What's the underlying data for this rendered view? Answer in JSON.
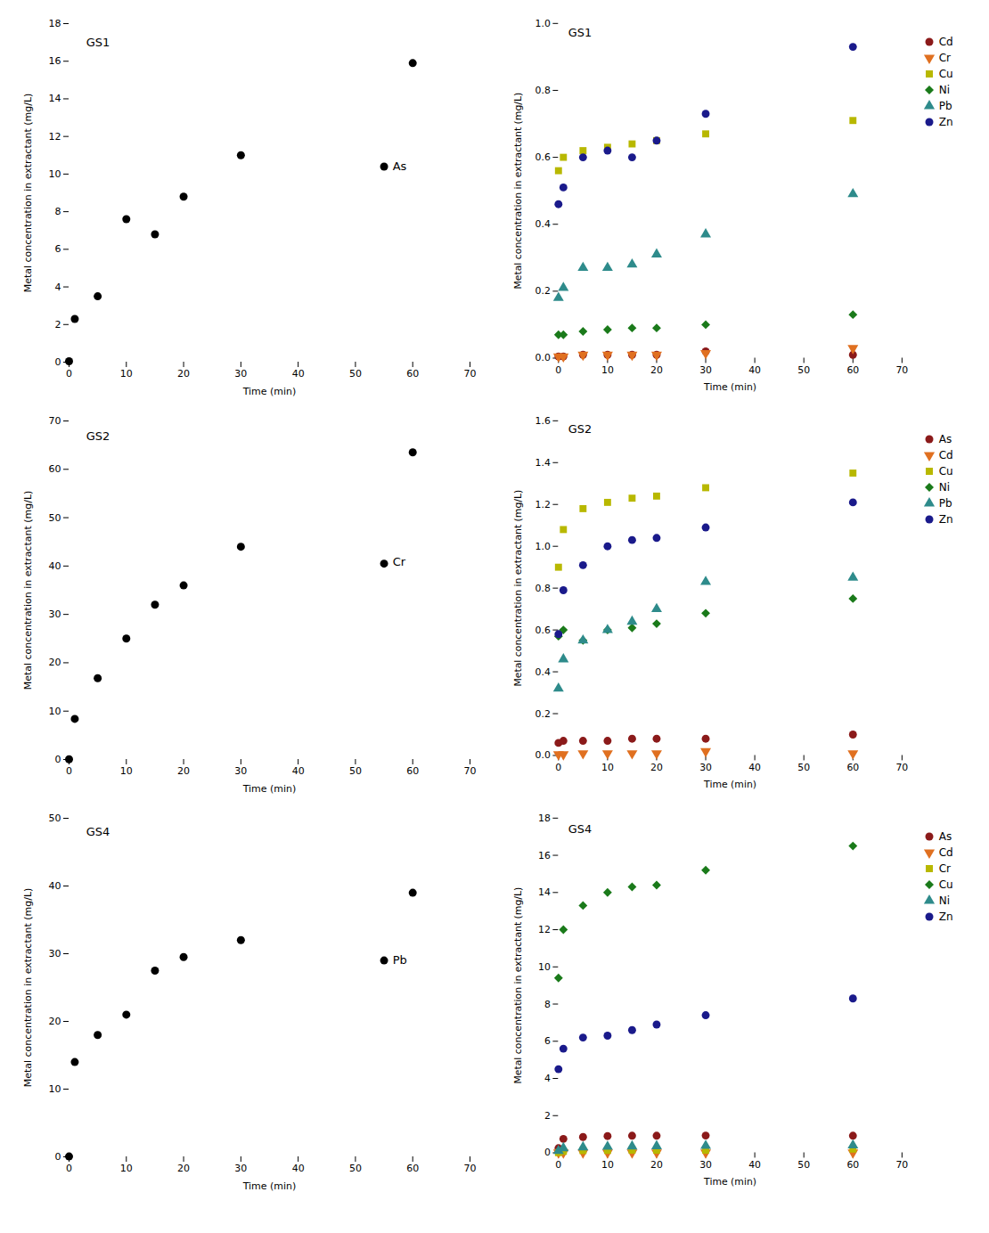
{
  "chart_data": [
    {
      "type": "scatter",
      "xlabel": "Time (min)",
      "ylabel": "Metal concentration in extractant (mg/L)",
      "xlim": [
        0,
        70
      ],
      "xticks": [
        0,
        10,
        20,
        30,
        40,
        50,
        60,
        70
      ],
      "ylim": [
        0,
        18
      ],
      "yticks": [
        0,
        2,
        4,
        6,
        8,
        10,
        12,
        14,
        16,
        18
      ],
      "annotations": [
        {
          "text": "As",
          "x": 56.5,
          "y": 10.2
        },
        {
          "text": "GS1",
          "x": 3,
          "y": 16.8
        }
      ],
      "x": [
        0,
        1,
        5,
        10,
        15,
        20,
        30,
        55,
        60
      ],
      "values": [
        0.05,
        2.3,
        3.5,
        7.6,
        6.8,
        8.8,
        11.0,
        10.4,
        15.9
      ],
      "color": "black",
      "marker": "circle"
    },
    {
      "type": "scatter",
      "xlabel": "Time (min)",
      "ylabel": "Metal concentration in extractant (mg/L)",
      "xlim": [
        0,
        70
      ],
      "xticks": [
        0,
        10,
        20,
        30,
        40,
        50,
        60,
        70
      ],
      "ylim": [
        0,
        1.0
      ],
      "yticks": [
        {
          "value": 0,
          "label": "0.0"
        },
        0.2,
        0.4,
        0.6,
        0.8,
        {
          "value": 1.0,
          "label": "1.0"
        }
      ],
      "annotations": [
        {
          "text": "GS1",
          "x": 2,
          "y": 0.96
        }
      ],
      "legend": "right",
      "x": [
        0,
        1,
        5,
        10,
        15,
        20,
        30,
        60
      ],
      "series": [
        {
          "name": "Cd",
          "color": "#8B1A1A",
          "marker": "circle",
          "values": [
            0.005,
            0.005,
            0.01,
            0.01,
            0.01,
            0.01,
            0.02,
            0.01
          ]
        },
        {
          "name": "Cr",
          "color": "#E07020",
          "marker": "triangle_down",
          "values": [
            0.005,
            0.005,
            0.01,
            0.01,
            0.01,
            0.01,
            0.015,
            0.03
          ]
        },
        {
          "name": "Cu",
          "color": "#B8B800",
          "marker": "square",
          "values": [
            0.56,
            0.6,
            0.62,
            0.63,
            0.64,
            0.65,
            0.67,
            0.71
          ]
        },
        {
          "name": "Ni",
          "color": "#1A7A1A",
          "marker": "diamond",
          "values": [
            0.07,
            0.07,
            0.08,
            0.085,
            0.09,
            0.09,
            0.1,
            0.13
          ]
        },
        {
          "name": "Pb",
          "color": "#2E8B8B",
          "marker": "triangle_up",
          "values": [
            0.18,
            0.21,
            0.27,
            0.27,
            0.28,
            0.31,
            0.37,
            0.49
          ]
        },
        {
          "name": "Zn",
          "color": "#1A1A8B",
          "marker": "circle",
          "values": [
            0.46,
            0.51,
            0.6,
            0.62,
            0.6,
            0.65,
            0.73,
            0.93
          ]
        }
      ]
    },
    {
      "type": "scatter",
      "xlabel": "Time (min)",
      "ylabel": "Metal concentration in extractant (mg/L)",
      "xlim": [
        0,
        70
      ],
      "xticks": [
        0,
        10,
        20,
        30,
        40,
        50,
        60,
        70
      ],
      "ylim": [
        0,
        70
      ],
      "yticks": [
        0,
        10,
        20,
        30,
        40,
        50,
        60,
        70
      ],
      "annotations": [
        {
          "text": "Cr",
          "x": 56.5,
          "y": 40.0
        },
        {
          "text": "GS2",
          "x": 3,
          "y": 66
        }
      ],
      "x": [
        0,
        1,
        5,
        10,
        15,
        20,
        30,
        55,
        60
      ],
      "values": [
        0.05,
        8.4,
        16.8,
        25.0,
        32.0,
        36.0,
        44.0,
        40.5,
        63.5
      ],
      "color": "black",
      "marker": "circle"
    },
    {
      "type": "scatter",
      "xlabel": "Time (min)",
      "ylabel": "Metal concentration in extractant (mg/L)",
      "xlim": [
        0,
        70
      ],
      "xticks": [
        0,
        10,
        20,
        30,
        40,
        50,
        60,
        70
      ],
      "ylim": [
        0,
        1.6
      ],
      "yticks": [
        {
          "value": 0,
          "label": "0.0"
        },
        0.2,
        0.4,
        0.6,
        0.8,
        {
          "value": 1.0,
          "label": "1.0"
        },
        1.2,
        1.4,
        1.6
      ],
      "annotations": [
        {
          "text": "GS2",
          "x": 2,
          "y": 1.54
        }
      ],
      "legend": "right",
      "x": [
        0,
        1,
        5,
        10,
        15,
        20,
        30,
        60
      ],
      "series": [
        {
          "name": "As",
          "color": "#8B1A1A",
          "marker": "circle",
          "values": [
            0.06,
            0.07,
            0.07,
            0.07,
            0.08,
            0.08,
            0.08,
            0.1
          ]
        },
        {
          "name": "Cd",
          "color": "#E07020",
          "marker": "triangle_down",
          "values": [
            0.005,
            0.005,
            0.01,
            0.01,
            0.01,
            0.01,
            0.02,
            0.01
          ]
        },
        {
          "name": "Cu",
          "color": "#B8B800",
          "marker": "square",
          "values": [
            0.9,
            1.08,
            1.18,
            1.21,
            1.23,
            1.24,
            1.28,
            1.35
          ]
        },
        {
          "name": "Ni",
          "color": "#1A7A1A",
          "marker": "diamond",
          "values": [
            0.57,
            0.6,
            0.55,
            0.6,
            0.61,
            0.63,
            0.68,
            0.75
          ]
        },
        {
          "name": "Pb",
          "color": "#2E8B8B",
          "marker": "triangle_up",
          "values": [
            0.32,
            0.46,
            0.55,
            0.6,
            0.64,
            0.7,
            0.83,
            0.85
          ]
        },
        {
          "name": "Zn",
          "color": "#1A1A8B",
          "marker": "circle",
          "values": [
            0.58,
            0.79,
            0.91,
            1.0,
            1.03,
            1.04,
            1.09,
            1.21
          ]
        }
      ]
    },
    {
      "type": "scatter",
      "xlabel": "Time (min)",
      "ylabel": "Metal concentration in extractant (mg/L)",
      "xlim": [
        0,
        70
      ],
      "xticks": [
        0,
        10,
        20,
        30,
        40,
        50,
        60,
        70
      ],
      "ylim": [
        0,
        50
      ],
      "yticks": [
        0,
        10,
        20,
        30,
        40,
        50
      ],
      "annotations": [
        {
          "text": "Pb",
          "x": 56.5,
          "y": 28.5
        },
        {
          "text": "GS4",
          "x": 3,
          "y": 47.5
        }
      ],
      "x": [
        0,
        1,
        5,
        10,
        15,
        20,
        30,
        55,
        60
      ],
      "values": [
        0.05,
        14.0,
        18.0,
        21.0,
        27.5,
        29.5,
        32.0,
        29.0,
        39.0
      ],
      "color": "black",
      "marker": "circle"
    },
    {
      "type": "scatter",
      "xlabel": "Time (min)",
      "ylabel": "Metal concentration in extractant (mg/L)",
      "xlim": [
        0,
        70
      ],
      "xticks": [
        0,
        10,
        20,
        30,
        40,
        50,
        60,
        70
      ],
      "ylim": [
        0,
        18
      ],
      "yticks": [
        0,
        2,
        4,
        6,
        8,
        10,
        12,
        14,
        16,
        18
      ],
      "annotations": [
        {
          "text": "GS4",
          "x": 2,
          "y": 17.2
        }
      ],
      "legend": "right",
      "x": [
        0,
        1,
        5,
        10,
        15,
        20,
        30,
        60
      ],
      "series": [
        {
          "name": "As",
          "color": "#8B1A1A",
          "marker": "circle",
          "values": [
            0.25,
            0.75,
            0.85,
            0.9,
            0.92,
            0.92,
            0.93,
            0.92
          ]
        },
        {
          "name": "Cd",
          "color": "#E07020",
          "marker": "triangle_down",
          "values": [
            0.01,
            0.01,
            0.01,
            0.01,
            0.01,
            0.01,
            0.01,
            0.01
          ]
        },
        {
          "name": "Cr",
          "color": "#B8B800",
          "marker": "square",
          "values": [
            0.01,
            0.08,
            0.12,
            0.13,
            0.14,
            0.14,
            0.14,
            0.2
          ]
        },
        {
          "name": "Cu",
          "color": "#1A7A1A",
          "marker": "diamond",
          "values": [
            9.4,
            12.0,
            13.3,
            14.0,
            14.3,
            14.4,
            15.2,
            16.5
          ]
        },
        {
          "name": "Ni",
          "color": "#2E8B8B",
          "marker": "triangle_up",
          "values": [
            0.1,
            0.25,
            0.3,
            0.33,
            0.35,
            0.36,
            0.38,
            0.4
          ]
        },
        {
          "name": "Zn",
          "color": "#1A1A8B",
          "marker": "circle",
          "values": [
            4.5,
            5.6,
            6.2,
            6.3,
            6.6,
            6.9,
            7.4,
            8.3
          ]
        }
      ]
    }
  ]
}
